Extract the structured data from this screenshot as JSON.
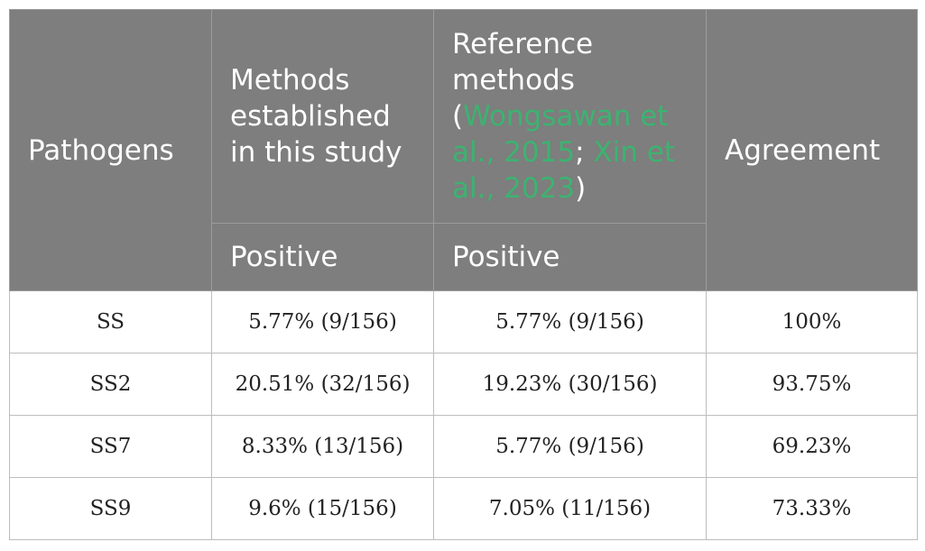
{
  "table": {
    "headers": {
      "pathogens": "Pathogens",
      "methods_study": "Methods established in this study",
      "reference_prefix": "Reference methods (",
      "reference_cite1": "Wongsawan et al., 2015",
      "reference_sep": ";",
      "reference_cite2": "Xin et al., 2023",
      "reference_suffix": ")",
      "agreement": "Agreement",
      "positive_study": "Positive",
      "positive_reference": "Positive"
    },
    "rows": [
      {
        "pathogen": "SS",
        "study": "5.77% (9/156)",
        "reference": "5.77% (9/156)",
        "agreement": "100%"
      },
      {
        "pathogen": "SS2",
        "study": "20.51% (32/156)",
        "reference": "19.23% (30/156)",
        "agreement": "93.75%"
      },
      {
        "pathogen": "SS7",
        "study": "8.33% (13/156)",
        "reference": "5.77% (9/156)",
        "agreement": "69.23%"
      },
      {
        "pathogen": "SS9",
        "study": "9.6% (15/156)",
        "reference": "7.05% (11/156)",
        "agreement": "73.33%"
      }
    ]
  },
  "colors": {
    "header_bg": "#7d7e7d",
    "citation": "#3cb371"
  }
}
